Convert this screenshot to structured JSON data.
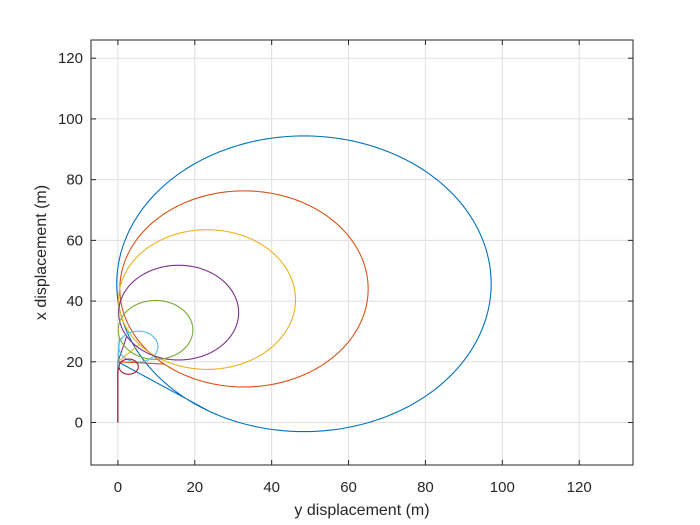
{
  "chart_data": {
    "type": "line",
    "title": "",
    "xlabel": "y displacement (m)",
    "ylabel": "x displacement (m)",
    "xlim": [
      -7,
      134
    ],
    "ylim": [
      -14,
      126
    ],
    "xticks": [
      0,
      20,
      40,
      60,
      80,
      100,
      120
    ],
    "yticks": [
      0,
      20,
      40,
      60,
      80,
      100,
      120
    ],
    "grid": true,
    "legend": "none",
    "series": [
      {
        "color": "#0072BD",
        "start": [
          0,
          0
        ],
        "climb_to": [
          0,
          20
        ],
        "cx": 48.4,
        "cy": 45.7,
        "r": 48.7,
        "loop_start_angle_deg": -120
      },
      {
        "color": "#D95319",
        "start": [
          0,
          0
        ],
        "climb_to": [
          0,
          20
        ],
        "cx": 32.8,
        "cy": 44.0,
        "r": 32.3,
        "loop_start_angle_deg": -130
      },
      {
        "color": "#EDB120",
        "start": [
          0,
          0
        ],
        "climb_to": [
          0,
          20
        ],
        "cx": 23.2,
        "cy": 40.5,
        "r": 23.0,
        "loop_start_angle_deg": -140
      },
      {
        "color": "#7E2F8E",
        "start": [
          0,
          0
        ],
        "climb_to": [
          0,
          20
        ],
        "cx": 15.8,
        "cy": 36.2,
        "r": 15.6,
        "loop_start_angle_deg": -150
      },
      {
        "color": "#77AC30",
        "start": [
          0,
          0
        ],
        "climb_to": [
          0,
          20
        ],
        "cx": 9.8,
        "cy": 30.5,
        "r": 9.7,
        "loop_start_angle_deg": -165
      },
      {
        "color": "#4DBEEE",
        "start": [
          0,
          0
        ],
        "climb_to": [
          0,
          20
        ],
        "cx": 5.3,
        "cy": 25.0,
        "r": 5.1,
        "loop_start_angle_deg": -180
      },
      {
        "color": "#A2142F",
        "start": [
          0,
          0
        ],
        "climb_to": [
          0,
          17
        ],
        "cx": 2.8,
        "cy": 18.4,
        "r": 2.5,
        "loop_start_angle_deg": -180
      }
    ]
  }
}
